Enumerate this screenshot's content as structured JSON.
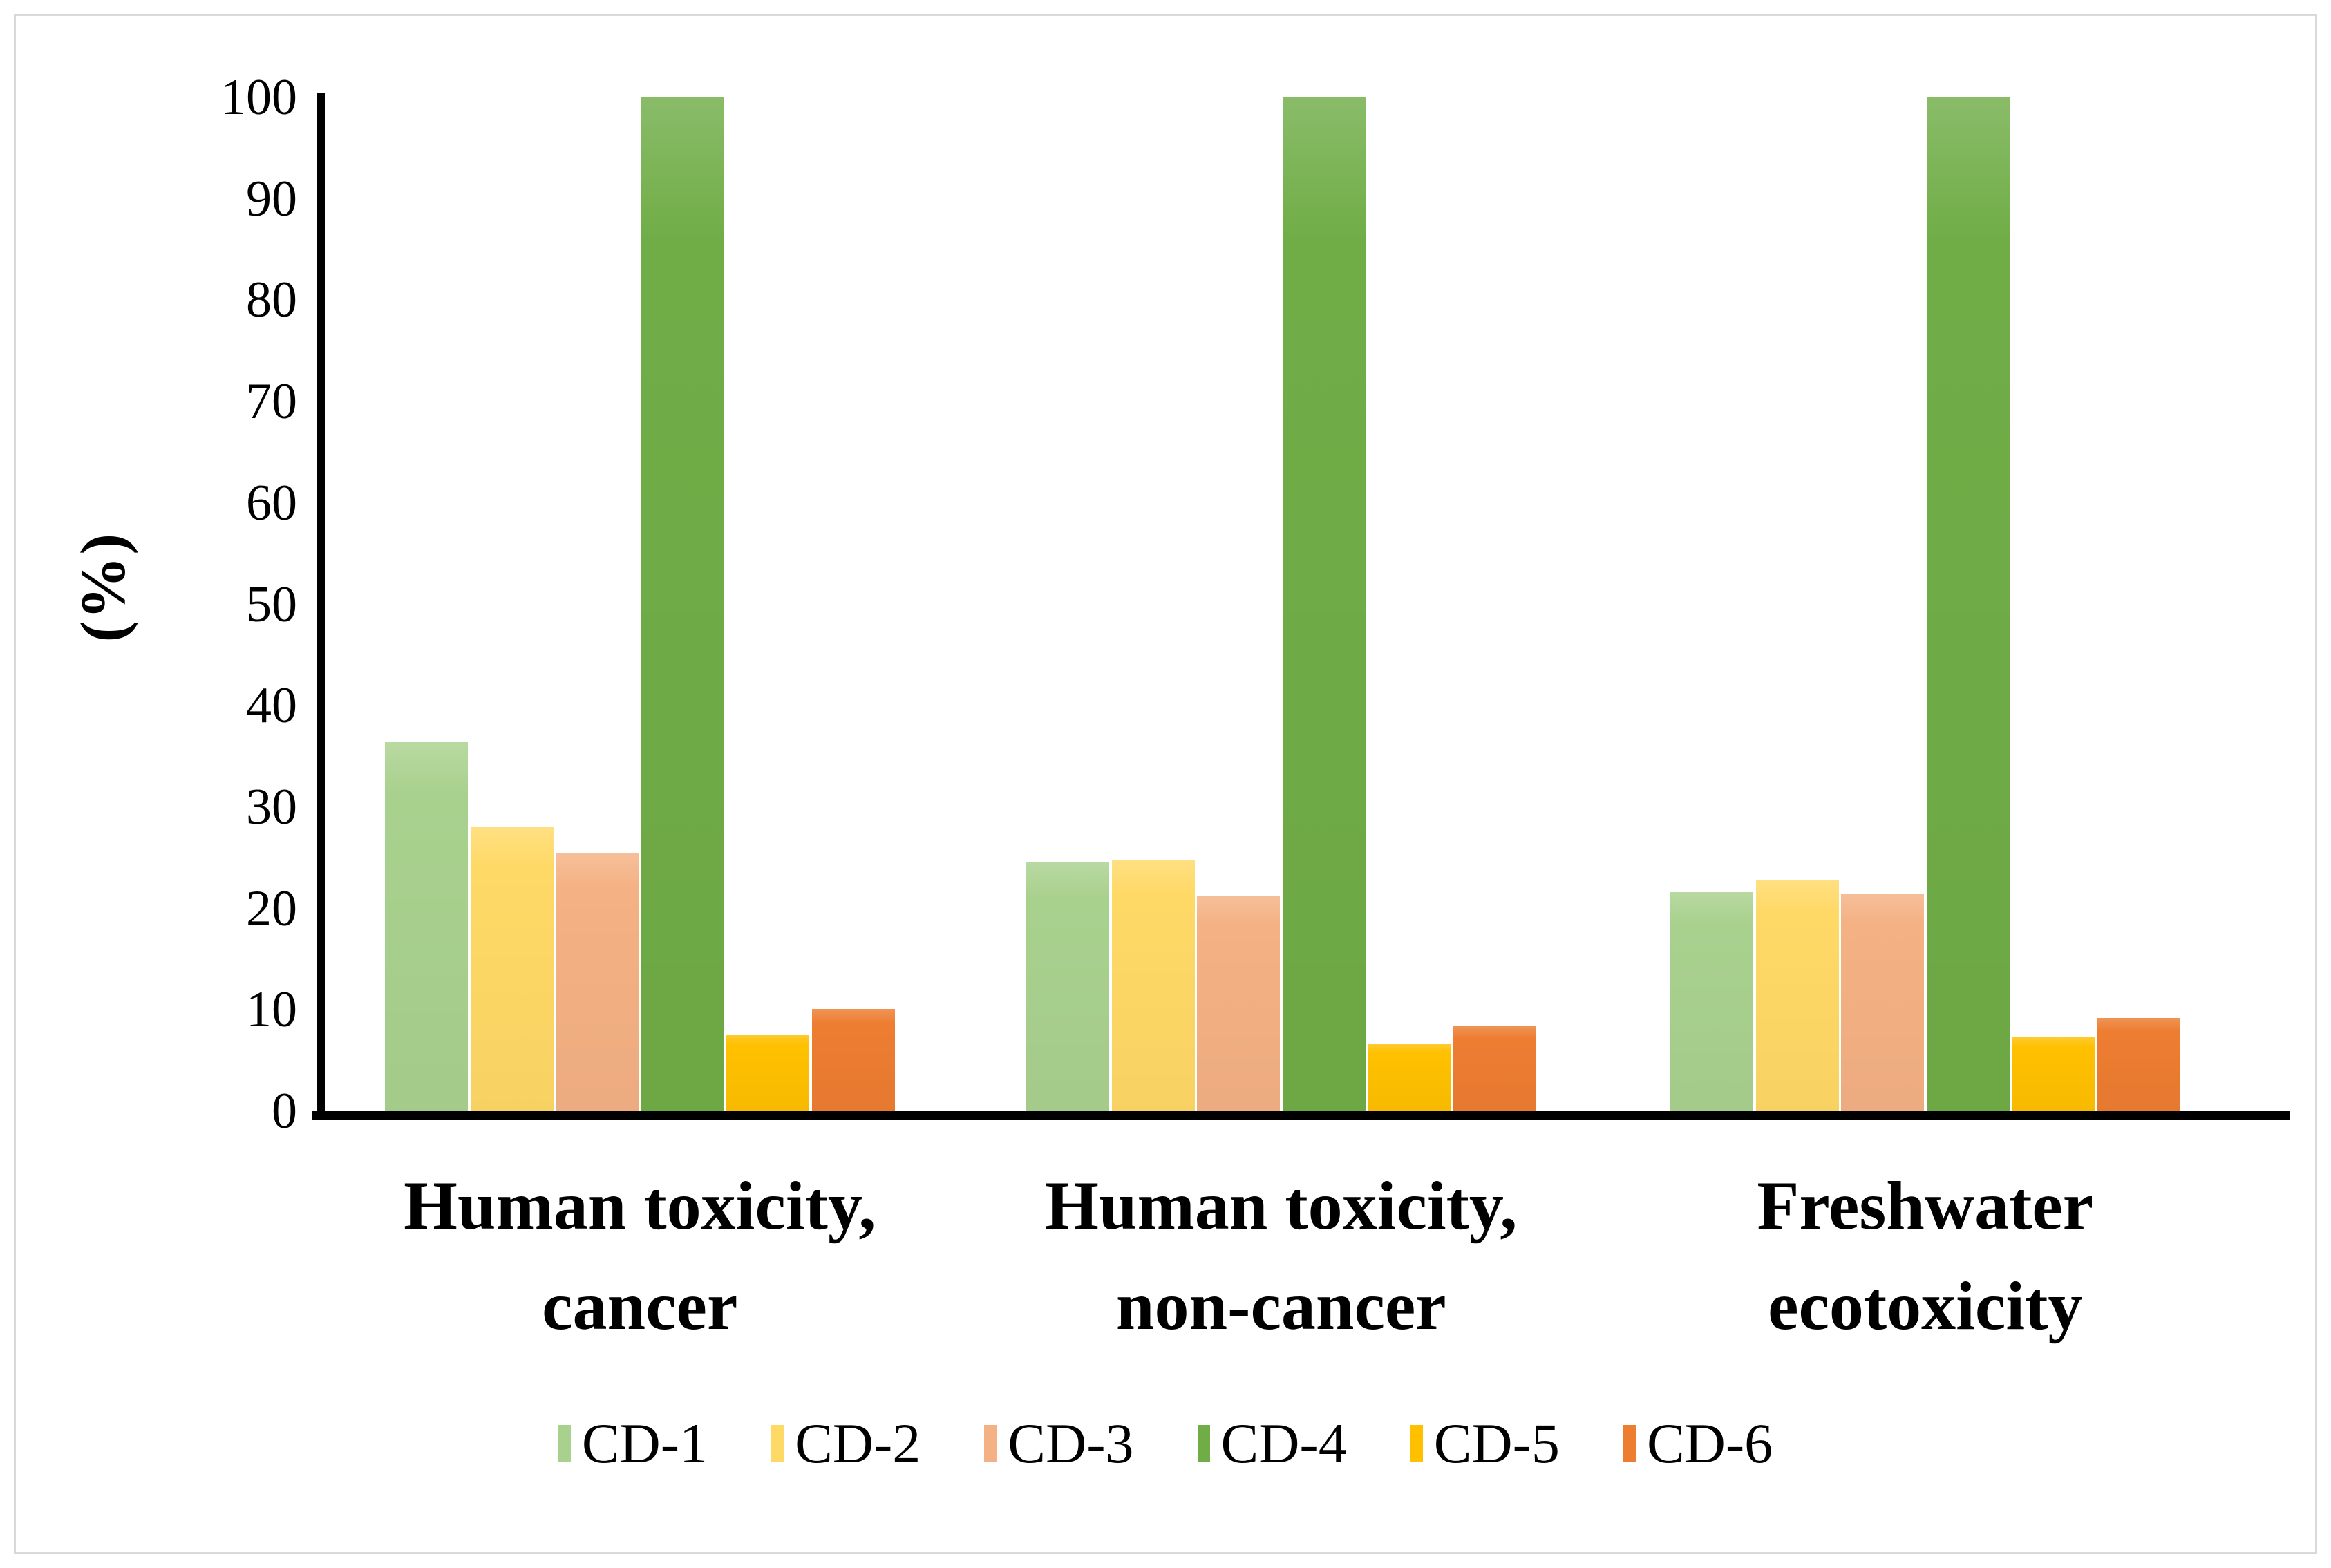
{
  "chart_data": {
    "type": "bar",
    "title": "",
    "ylabel": "(%)",
    "xlabel": "",
    "ylim": [
      0,
      100
    ],
    "grid": "off",
    "legend_position": "bottom",
    "y_ticks": [
      0,
      10,
      20,
      30,
      40,
      50,
      60,
      70,
      80,
      90,
      100
    ],
    "categories": [
      {
        "lines": [
          "Human toxicity,",
          "cancer"
        ]
      },
      {
        "lines": [
          "Human toxicity,",
          "non-cancer"
        ]
      },
      {
        "lines": [
          "Freshwater",
          "ecotoxicity"
        ]
      }
    ],
    "series": [
      {
        "name": "CD-1",
        "color": "#A9D18E",
        "values": [
          36.5,
          24.6,
          21.6
        ]
      },
      {
        "name": "CD-2",
        "color": "#FFD966",
        "values": [
          28.0,
          24.8,
          22.8
        ]
      },
      {
        "name": "CD-3",
        "color": "#F4B183",
        "values": [
          25.4,
          21.3,
          21.5
        ]
      },
      {
        "name": "CD-4",
        "color": "#70AD47",
        "values": [
          100,
          100,
          100
        ]
      },
      {
        "name": "CD-5",
        "color": "#FFC000",
        "values": [
          7.6,
          6.6,
          7.3
        ]
      },
      {
        "name": "CD-6",
        "color": "#ED7D31",
        "values": [
          10.1,
          8.4,
          9.2
        ]
      }
    ],
    "axis_color": "#000000",
    "frame_border_color": "#d9d9d9"
  }
}
